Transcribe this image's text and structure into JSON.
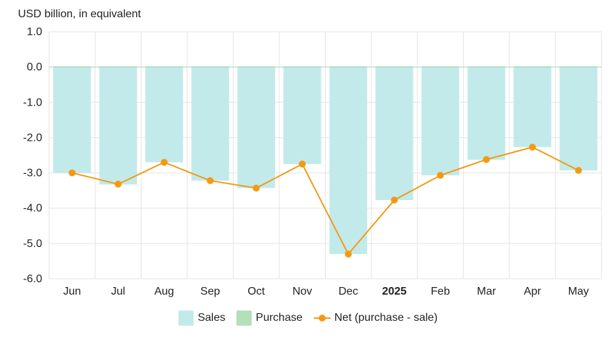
{
  "chart_data": {
    "type": "bar",
    "ylabel": "USD billion, in equivalent",
    "categories": [
      "Jun",
      "Jul",
      "Aug",
      "Sep",
      "Oct",
      "Nov",
      "Dec",
      "2025",
      "Feb",
      "Mar",
      "Apr",
      "May"
    ],
    "bold_categories": [
      "2025"
    ],
    "ylim": [
      -6.0,
      1.0
    ],
    "yticks": [
      "1.0",
      "0.0",
      "-1.0",
      "-2.0",
      "-3.0",
      "-4.0",
      "-5.0",
      "-6.0"
    ],
    "grid": true,
    "legend_position": "bottom",
    "series": [
      {
        "name": "Sales",
        "type": "bar",
        "color": "#c3eaea",
        "values": [
          -3.0,
          -3.33,
          -2.7,
          -3.22,
          -3.43,
          -2.75,
          -5.3,
          -3.77,
          -3.07,
          -2.63,
          -2.27,
          -2.93
        ]
      },
      {
        "name": "Purchase",
        "type": "bar",
        "color": "#b3dfb9",
        "values": [
          0.02,
          0.02,
          0.02,
          0.02,
          0.02,
          0.02,
          0.02,
          0.02,
          0.02,
          0.02,
          0.02,
          0.02
        ]
      },
      {
        "name": "Net (purchase - sale)",
        "type": "line",
        "color": "#f39a12",
        "values": [
          -3.0,
          -3.32,
          -2.7,
          -3.22,
          -3.43,
          -2.75,
          -5.3,
          -3.77,
          -3.07,
          -2.62,
          -2.27,
          -2.93
        ]
      }
    ]
  }
}
